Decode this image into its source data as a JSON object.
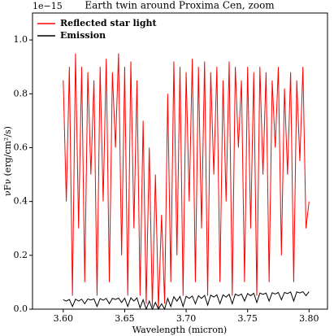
{
  "chart_data": {
    "type": "line",
    "title": "Earth twin around Proxima Cen, zoom",
    "xlabel": "Wavelength (micron)",
    "ylabel": "νFν (erg/cm²/s)",
    "y_offset_label": "1e−15",
    "x": [
      3.6,
      3.6025,
      3.605,
      3.6075,
      3.61,
      3.6125,
      3.615,
      3.6175,
      3.62,
      3.6225,
      3.625,
      3.6275,
      3.63,
      3.6325,
      3.635,
      3.6375,
      3.64,
      3.6425,
      3.645,
      3.6475,
      3.65,
      3.6525,
      3.655,
      3.6575,
      3.66,
      3.6625,
      3.665,
      3.6675,
      3.67,
      3.6725,
      3.675,
      3.6775,
      3.68,
      3.6825,
      3.685,
      3.6875,
      3.69,
      3.6925,
      3.695,
      3.6975,
      3.7,
      3.7025,
      3.705,
      3.7075,
      3.71,
      3.7125,
      3.715,
      3.7175,
      3.72,
      3.7225,
      3.725,
      3.7275,
      3.73,
      3.7325,
      3.735,
      3.7375,
      3.74,
      3.7425,
      3.745,
      3.7475,
      3.75,
      3.7525,
      3.755,
      3.7575,
      3.76,
      3.7625,
      3.765,
      3.7675,
      3.77,
      3.7725,
      3.775,
      3.7775,
      3.78,
      3.7825,
      3.785,
      3.7875,
      3.79,
      3.7925,
      3.795,
      3.7975,
      3.8
    ],
    "series": [
      {
        "name": "Reflected star light",
        "color": "#ff0000",
        "values": [
          0.85,
          0.4,
          0.9,
          0.05,
          0.95,
          0.3,
          0.9,
          0.1,
          0.88,
          0.5,
          0.85,
          0.05,
          0.9,
          0.4,
          0.93,
          0.1,
          0.88,
          0.6,
          0.95,
          0.2,
          0.9,
          0.05,
          0.92,
          0.3,
          0.85,
          0.05,
          0.7,
          0.02,
          0.6,
          0.01,
          0.5,
          0.0,
          0.35,
          0.02,
          0.8,
          0.1,
          0.92,
          0.2,
          0.9,
          0.05,
          0.88,
          0.4,
          0.93,
          0.1,
          0.9,
          0.3,
          0.92,
          0.05,
          0.88,
          0.5,
          0.9,
          0.1,
          0.85,
          0.4,
          0.92,
          0.05,
          0.9,
          0.6,
          0.85,
          0.1,
          0.9,
          0.3,
          0.88,
          0.05,
          0.9,
          0.5,
          0.88,
          0.1,
          0.85,
          0.6,
          0.9,
          0.2,
          0.82,
          0.5,
          0.88,
          0.1,
          0.85,
          0.55,
          0.9,
          0.3,
          0.4
        ]
      },
      {
        "name": "Emission",
        "color": "#000000",
        "values": [
          0.035,
          0.03,
          0.036,
          0.01,
          0.037,
          0.03,
          0.037,
          0.02,
          0.038,
          0.034,
          0.038,
          0.01,
          0.039,
          0.033,
          0.04,
          0.02,
          0.04,
          0.036,
          0.041,
          0.025,
          0.041,
          0.01,
          0.042,
          0.03,
          0.042,
          0.005,
          0.035,
          0.0,
          0.03,
          0.0,
          0.025,
          0.0,
          0.02,
          0.0,
          0.04,
          0.01,
          0.046,
          0.03,
          0.047,
          0.01,
          0.048,
          0.04,
          0.049,
          0.02,
          0.05,
          0.04,
          0.051,
          0.015,
          0.052,
          0.045,
          0.053,
          0.02,
          0.053,
          0.045,
          0.055,
          0.02,
          0.056,
          0.05,
          0.056,
          0.03,
          0.058,
          0.05,
          0.059,
          0.025,
          0.06,
          0.055,
          0.06,
          0.03,
          0.061,
          0.056,
          0.062,
          0.035,
          0.062,
          0.058,
          0.064,
          0.03,
          0.064,
          0.06,
          0.065,
          0.05,
          0.065
        ]
      }
    ],
    "xlim": [
      3.575,
      3.815
    ],
    "ylim": [
      0,
      1.1
    ],
    "xticks": [
      {
        "value": 3.6,
        "label": "3.60"
      },
      {
        "value": 3.65,
        "label": "3.65"
      },
      {
        "value": 3.7,
        "label": "3.70"
      },
      {
        "value": 3.75,
        "label": "3.75"
      },
      {
        "value": 3.8,
        "label": "3.80"
      }
    ],
    "yticks": [
      {
        "value": 0,
        "label": "0.0"
      },
      0.2,
      0.4,
      0.6,
      0.8,
      {
        "value": 1,
        "label": "1.0"
      }
    ],
    "legend": "upper left",
    "grid": false
  }
}
